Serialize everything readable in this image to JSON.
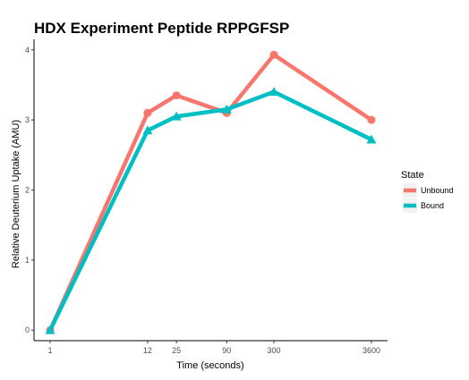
{
  "chart_data": {
    "type": "line",
    "title": "HDX Experiment Peptide RPPGFSP",
    "xlabel": "Time (seconds)",
    "ylabel": "Relative Deuterium Uptake (AMU)",
    "x_scale": "log",
    "x": [
      1,
      12,
      25,
      90,
      300,
      3600
    ],
    "x_tick_labels": [
      "1",
      "12",
      "25",
      "90",
      "300",
      "3600"
    ],
    "y_ticks": [
      0,
      1,
      2,
      3,
      4
    ],
    "ylim": [
      -0.15,
      4.15
    ],
    "grid": false,
    "legend_title": "State",
    "legend_position": "right",
    "series": [
      {
        "name": "Unbound",
        "color": "#F8766D",
        "marker": "circle",
        "values": [
          0,
          3.1,
          3.35,
          3.1,
          3.93,
          3.0
        ]
      },
      {
        "name": "Bound",
        "color": "#00BFC4",
        "marker": "triangle",
        "values": [
          0,
          2.85,
          3.05,
          3.15,
          3.4,
          2.72
        ]
      }
    ]
  }
}
